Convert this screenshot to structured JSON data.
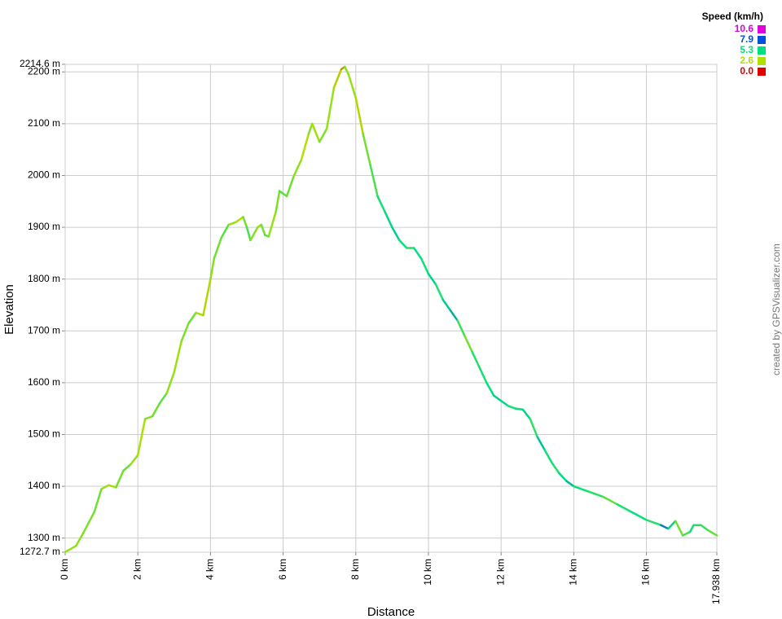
{
  "chart_data": {
    "type": "line",
    "y_label": "Elevation",
    "x_label": "Distance",
    "credit": "created by GPSVisualizer.com",
    "x": [
      0,
      0.3,
      0.5,
      0.8,
      1.0,
      1.2,
      1.4,
      1.6,
      1.8,
      2.0,
      2.2,
      2.4,
      2.6,
      2.8,
      3.0,
      3.2,
      3.4,
      3.6,
      3.8,
      4.0,
      4.1,
      4.3,
      4.5,
      4.7,
      4.9,
      5.0,
      5.1,
      5.3,
      5.4,
      5.5,
      5.6,
      5.8,
      5.9,
      6.1,
      6.3,
      6.5,
      6.7,
      6.8,
      7.0,
      7.2,
      7.4,
      7.6,
      7.7,
      7.8,
      8.0,
      8.2,
      8.4,
      8.6,
      8.8,
      9.0,
      9.2,
      9.4,
      9.6,
      9.8,
      10.0,
      10.2,
      10.4,
      10.6,
      10.8,
      11.0,
      11.2,
      11.4,
      11.6,
      11.8,
      12.0,
      12.2,
      12.4,
      12.6,
      12.8,
      13.0,
      13.2,
      13.4,
      13.6,
      13.8,
      14.0,
      14.4,
      14.8,
      15.2,
      15.6,
      16.0,
      16.4,
      16.6,
      16.8,
      17.0,
      17.2,
      17.3,
      17.5,
      17.7,
      17.938
    ],
    "values": [
      1273,
      1285,
      1310,
      1350,
      1395,
      1402,
      1398,
      1430,
      1442,
      1460,
      1530,
      1535,
      1560,
      1580,
      1620,
      1680,
      1715,
      1735,
      1730,
      1800,
      1840,
      1880,
      1905,
      1910,
      1920,
      1900,
      1875,
      1900,
      1905,
      1885,
      1882,
      1930,
      1970,
      1960,
      2000,
      2030,
      2080,
      2100,
      2065,
      2090,
      2170,
      2205,
      2210,
      2195,
      2150,
      2080,
      2020,
      1960,
      1930,
      1900,
      1875,
      1860,
      1860,
      1840,
      1810,
      1790,
      1760,
      1740,
      1720,
      1690,
      1660,
      1630,
      1600,
      1575,
      1565,
      1555,
      1550,
      1548,
      1530,
      1495,
      1470,
      1445,
      1425,
      1410,
      1400,
      1390,
      1380,
      1365,
      1350,
      1335,
      1325,
      1318,
      1333,
      1305,
      1312,
      1325,
      1325,
      1315,
      1305
    ],
    "speeds": [
      3.5,
      3.0,
      3.2,
      3.4,
      3.6,
      3.0,
      2.8,
      3.5,
      3.8,
      3.0,
      2.7,
      3.3,
      3.6,
      3.9,
      3.1,
      2.9,
      3.4,
      3.7,
      2.8,
      2.5,
      3.2,
      3.6,
      4.0,
      3.1,
      2.7,
      3.5,
      4.2,
      3.3,
      2.9,
      3.6,
      4.1,
      3.0,
      3.4,
      4.0,
      3.6,
      3.1,
      2.6,
      3.3,
      2.8,
      3.4,
      3.0,
      2.4,
      1.8,
      3.2,
      3.0,
      2.5,
      3.6,
      4.2,
      5.0,
      5.4,
      5.6,
      5.2,
      4.8,
      5.3,
      5.1,
      5.5,
      4.9,
      5.6,
      6.2,
      4.4,
      3.6,
      4.8,
      5.0,
      5.3,
      5.6,
      5.4,
      4.9,
      5.2,
      5.5,
      4.6,
      5.8,
      5.1,
      4.9,
      5.4,
      6.0,
      5.2,
      4.7,
      3.9,
      5.0,
      5.3,
      4.8,
      7.0,
      5.5,
      3.5,
      4.2,
      5.1,
      4.8,
      4.5,
      3.8
    ],
    "xlim": [
      0,
      17.938
    ],
    "xticks": [
      {
        "value": 0,
        "label": "0 km"
      },
      {
        "value": 2,
        "label": "2 km"
      },
      {
        "value": 4,
        "label": "4 km"
      },
      {
        "value": 6,
        "label": "6 km"
      },
      {
        "value": 8,
        "label": "8 km"
      },
      {
        "value": 10,
        "label": "10 km"
      },
      {
        "value": 12,
        "label": "12 km"
      },
      {
        "value": 14,
        "label": "14 km"
      },
      {
        "value": 16,
        "label": "16 km"
      },
      {
        "value": 17.938,
        "label": "17.938 km"
      }
    ],
    "ylim": [
      1272.7,
      2214.6
    ],
    "yticks": [
      {
        "value": 1272.7,
        "label": "1272.7 m"
      },
      {
        "value": 1300,
        "label": "1300 m"
      },
      {
        "value": 1400,
        "label": "1400 m"
      },
      {
        "value": 1500,
        "label": "1500 m"
      },
      {
        "value": 1600,
        "label": "1600 m"
      },
      {
        "value": 1700,
        "label": "1700 m"
      },
      {
        "value": 1800,
        "label": "1800 m"
      },
      {
        "value": 1900,
        "label": "1900 m"
      },
      {
        "value": 2000,
        "label": "2000 m"
      },
      {
        "value": 2100,
        "label": "2100 m"
      },
      {
        "value": 2200,
        "label": "2200 m"
      },
      {
        "value": 2214.6,
        "label": "2214.6 m"
      }
    ],
    "grid": true,
    "speed_scale": {
      "title": "Speed (km/h)",
      "ticks": [
        10.6,
        7.9,
        5.3,
        2.6,
        {
          "value": 0,
          "label": "0.0"
        }
      ],
      "colors": [
        "#e000e0",
        "#0050e0",
        "#00e080",
        "#b0e000",
        "#e00000"
      ]
    }
  }
}
